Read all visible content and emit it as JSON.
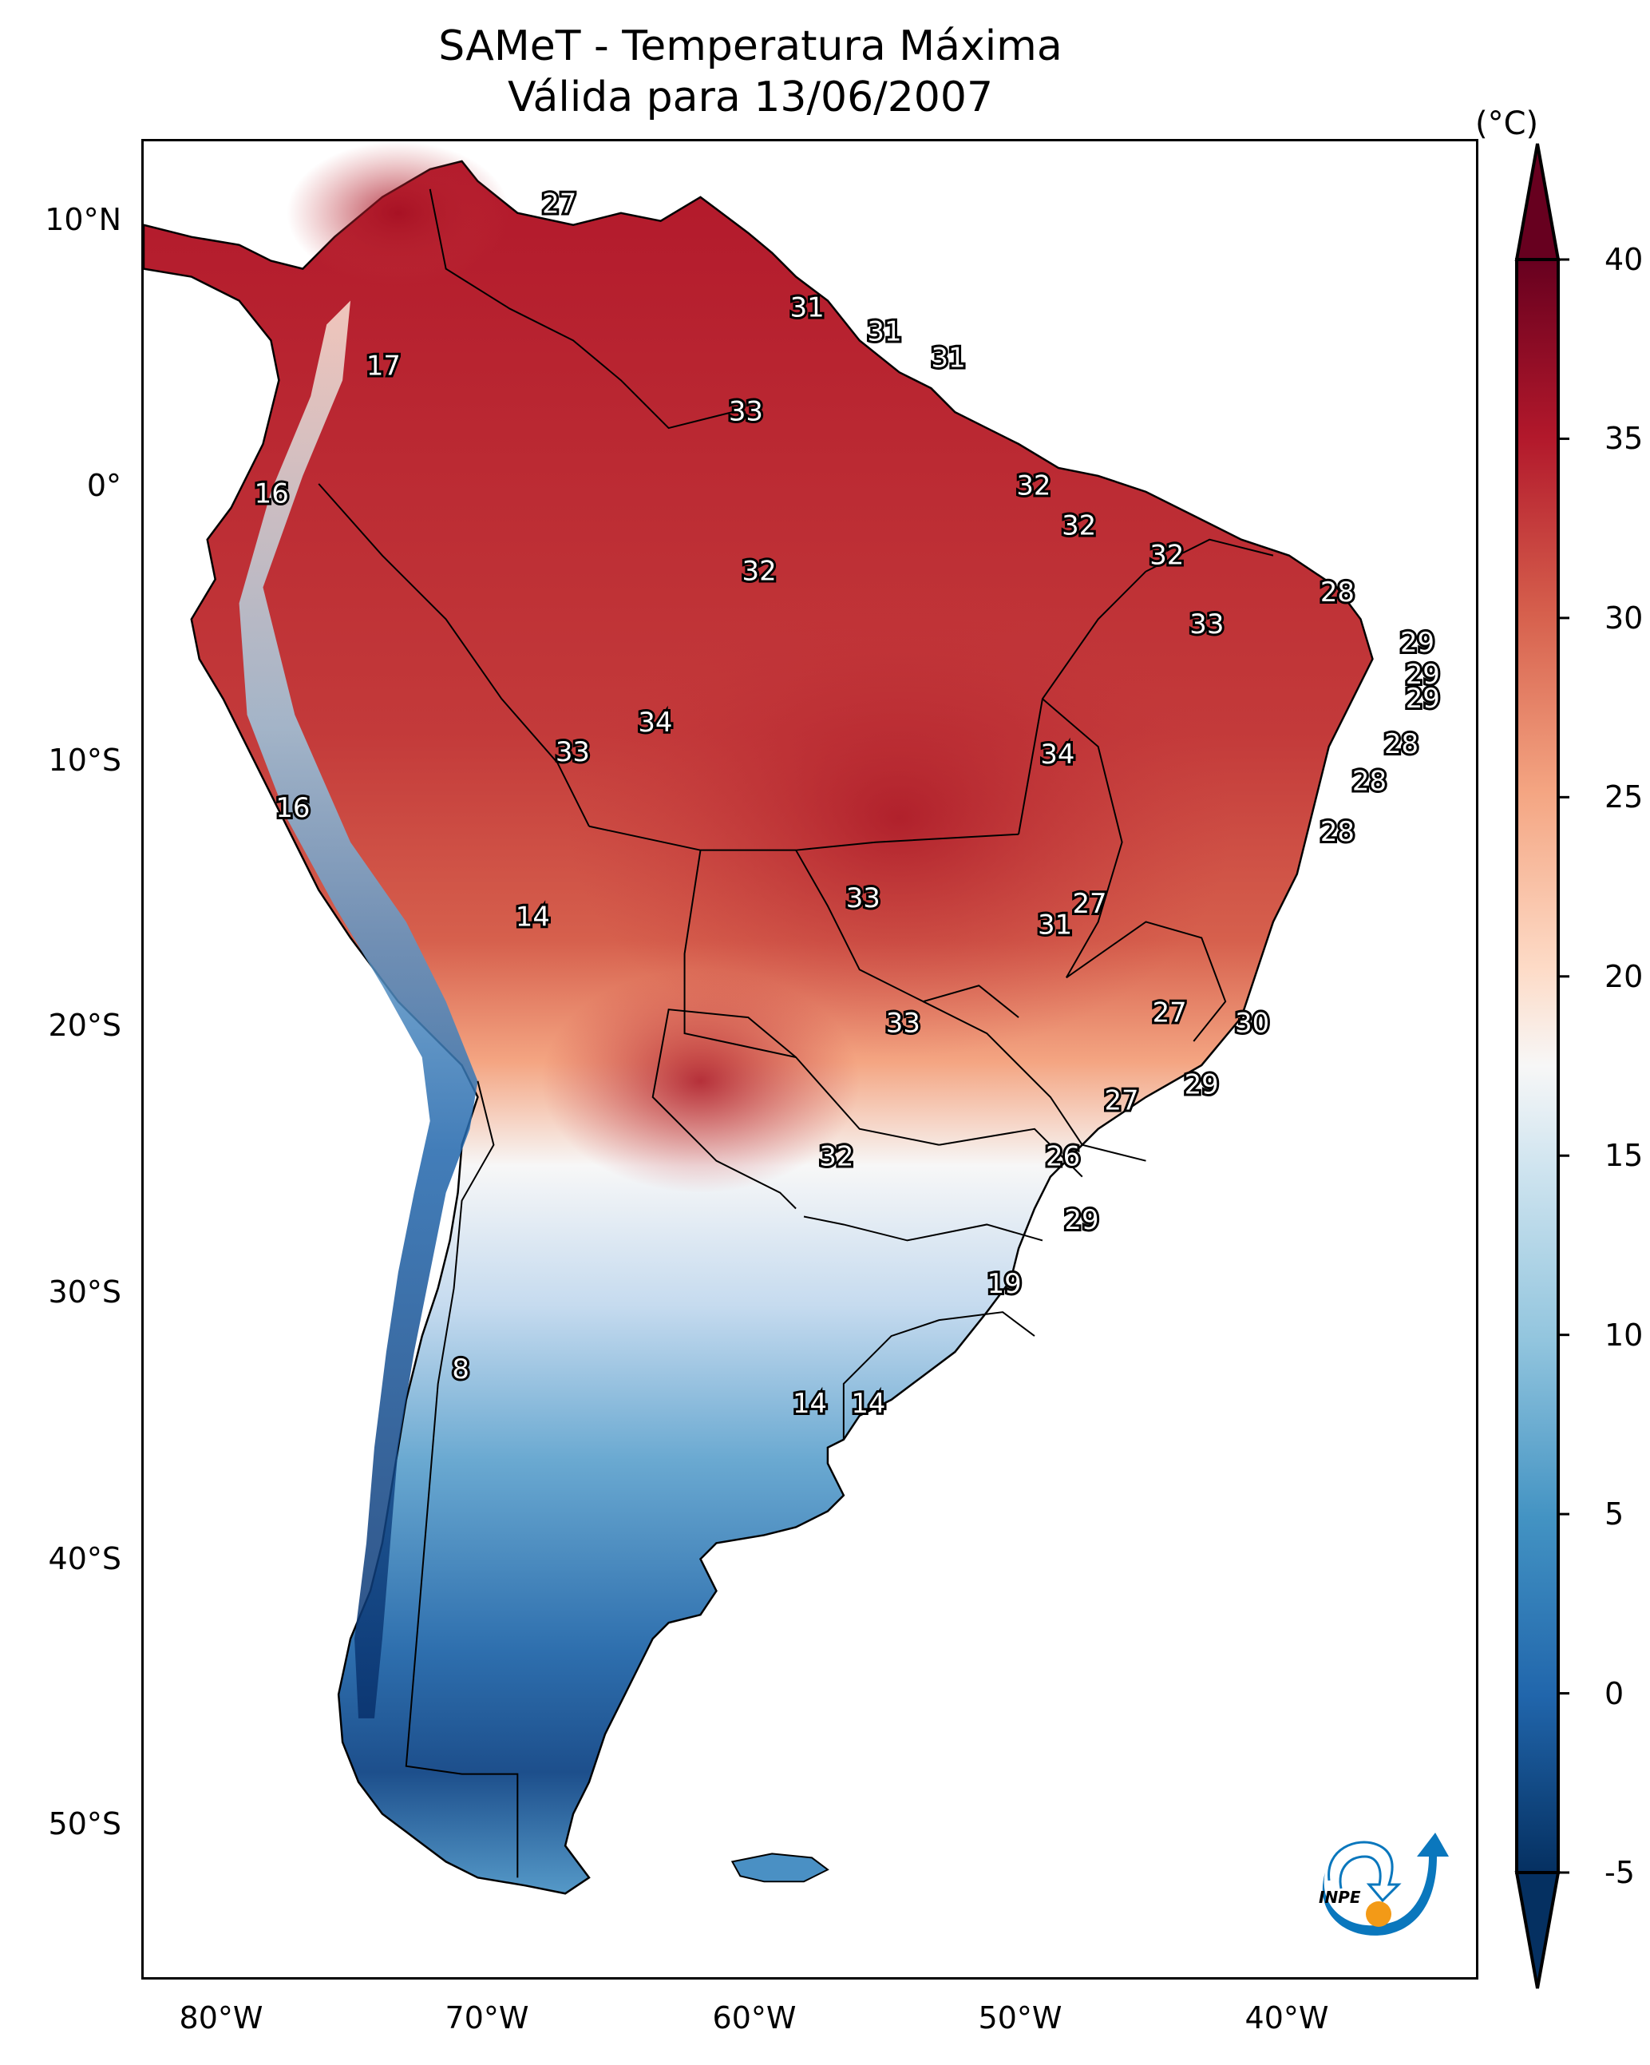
{
  "title": {
    "line1": "SAMeT - Temperatura Máxima",
    "line2": "Válida para 13/06/2007"
  },
  "chart_data": {
    "type": "heatmap",
    "title": "SAMeT - Temperatura Máxima",
    "subtitle": "Válida para 13/06/2007",
    "variable": "Maximum temperature",
    "units": "(°C)",
    "colormap": "RdBu_r",
    "colorbar": {
      "label": "(°C)",
      "range": [
        -5,
        40
      ],
      "extend": "both",
      "ticks": [
        40,
        35,
        30,
        25,
        20,
        15,
        10,
        5,
        0,
        -5
      ],
      "tick_labels": [
        "40",
        "35",
        "30",
        "25",
        "20",
        "15",
        "10",
        "5",
        "0",
        "-5"
      ],
      "placement": "right"
    },
    "xaxis": {
      "ticks": [
        -80,
        -70,
        -60,
        -50,
        -40
      ],
      "tick_labels": [
        "80°W",
        "70°W",
        "60°W",
        "50°W",
        "40°W"
      ],
      "range": [
        -83,
        -33
      ]
    },
    "yaxis": {
      "ticks": [
        10,
        0,
        -10,
        -20,
        -30,
        -40,
        -50
      ],
      "tick_labels": [
        "10°N",
        "0°",
        "10°S",
        "20°S",
        "30°S",
        "40°S",
        "50°S"
      ],
      "range": [
        -56,
        13
      ]
    },
    "grid": false,
    "point_labels": [
      {
        "lon": -67.4,
        "lat": 10.6,
        "value": "27"
      },
      {
        "lon": -74.0,
        "lat": 4.5,
        "value": "17"
      },
      {
        "lon": -78.2,
        "lat": -0.3,
        "value": "16"
      },
      {
        "lon": -58.1,
        "lat": 6.7,
        "value": "31"
      },
      {
        "lon": -55.2,
        "lat": 5.8,
        "value": "31"
      },
      {
        "lon": -52.8,
        "lat": 4.8,
        "value": "31"
      },
      {
        "lon": -60.4,
        "lat": 2.8,
        "value": "33"
      },
      {
        "lon": -49.6,
        "lat": 0.0,
        "value": "32"
      },
      {
        "lon": -47.9,
        "lat": -1.5,
        "value": "32"
      },
      {
        "lon": -44.6,
        "lat": -2.6,
        "value": "32"
      },
      {
        "lon": -59.9,
        "lat": -3.2,
        "value": "32"
      },
      {
        "lon": -38.2,
        "lat": -4.0,
        "value": "28"
      },
      {
        "lon": -43.1,
        "lat": -5.2,
        "value": "33"
      },
      {
        "lon": -35.2,
        "lat": -5.9,
        "value": "29"
      },
      {
        "lon": -35.0,
        "lat": -7.1,
        "value": "29"
      },
      {
        "lon": -35.0,
        "lat": -8.0,
        "value": "29"
      },
      {
        "lon": -63.8,
        "lat": -8.9,
        "value": "34"
      },
      {
        "lon": -66.9,
        "lat": -10.0,
        "value": "33"
      },
      {
        "lon": -48.7,
        "lat": -10.1,
        "value": "34"
      },
      {
        "lon": -35.8,
        "lat": -9.7,
        "value": "28"
      },
      {
        "lon": -37.0,
        "lat": -11.1,
        "value": "28"
      },
      {
        "lon": -77.4,
        "lat": -12.1,
        "value": "16"
      },
      {
        "lon": -38.2,
        "lat": -13.0,
        "value": "28"
      },
      {
        "lon": -68.4,
        "lat": -16.2,
        "value": "14"
      },
      {
        "lon": -56.0,
        "lat": -15.5,
        "value": "33"
      },
      {
        "lon": -47.5,
        "lat": -15.7,
        "value": "27"
      },
      {
        "lon": -48.8,
        "lat": -16.5,
        "value": "31"
      },
      {
        "lon": -44.5,
        "lat": -19.8,
        "value": "27"
      },
      {
        "lon": -41.4,
        "lat": -20.2,
        "value": "30"
      },
      {
        "lon": -54.5,
        "lat": -20.2,
        "value": "33"
      },
      {
        "lon": -43.3,
        "lat": -22.5,
        "value": "29"
      },
      {
        "lon": -46.3,
        "lat": -23.1,
        "value": "27"
      },
      {
        "lon": -57.0,
        "lat": -25.2,
        "value": "32"
      },
      {
        "lon": -48.5,
        "lat": -25.2,
        "value": "26"
      },
      {
        "lon": -47.8,
        "lat": -27.6,
        "value": "29"
      },
      {
        "lon": -50.7,
        "lat": -30.0,
        "value": "19"
      },
      {
        "lon": -71.1,
        "lat": -33.2,
        "value": "8"
      },
      {
        "lon": -58.0,
        "lat": -34.5,
        "value": "14"
      },
      {
        "lon": -55.8,
        "lat": -34.5,
        "value": "14"
      }
    ]
  },
  "logo": {
    "text": "INPE",
    "arrow_color": "#0a77bd",
    "dot_color": "#f39a17"
  }
}
